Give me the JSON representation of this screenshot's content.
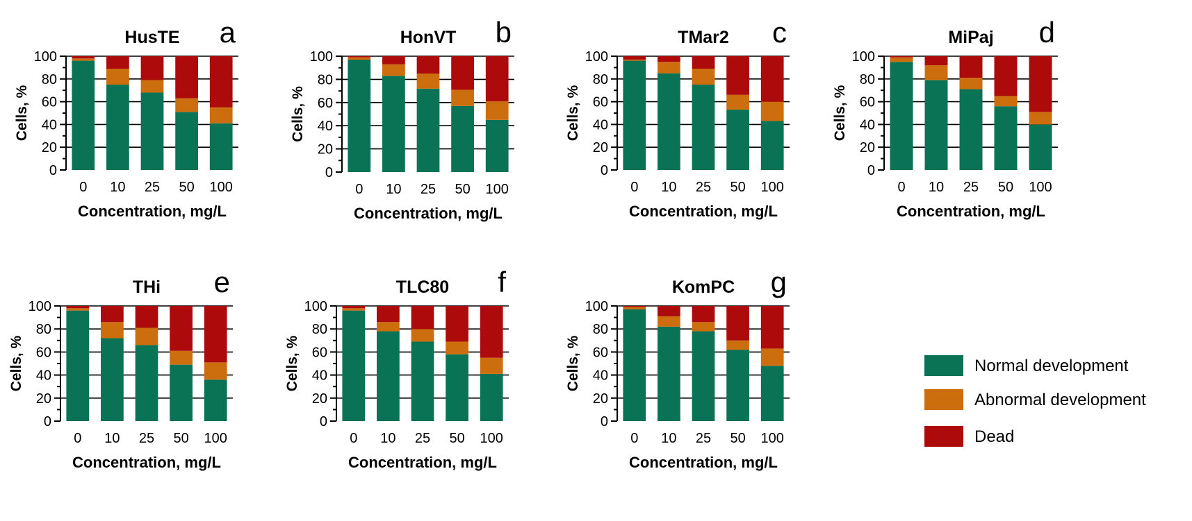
{
  "figure_label": "Multi-panel stacked bar chart",
  "legend": {
    "normal": "Normal development",
    "abnormal": "Abnormal development",
    "dead": "Dead"
  },
  "colors": {
    "normal": "#0b7355",
    "abnormal": "#cc6d0e",
    "dead": "#ad0b0b",
    "axis": "#000000",
    "grid": "#000000"
  },
  "chart_data": [
    {
      "type": "bar",
      "stacked": true,
      "panel": "a",
      "title": "HusTE",
      "xlabel": "Concentration, mg/L",
      "ylabel": "Cells, %",
      "ylim": [
        0,
        100
      ],
      "yticks": [
        "0",
        "20",
        "40",
        "60",
        "80",
        "100"
      ],
      "grid": true,
      "categories": [
        "0",
        "10",
        "25",
        "50",
        "100"
      ],
      "series": [
        {
          "name": "Normal development",
          "values": [
            96,
            75,
            68,
            51,
            41
          ]
        },
        {
          "name": "Abnormal development",
          "values": [
            2,
            14,
            11,
            12,
            14
          ]
        },
        {
          "name": "Dead",
          "values": [
            2,
            11,
            21,
            37,
            45
          ]
        }
      ]
    },
    {
      "type": "bar",
      "stacked": true,
      "panel": "b",
      "title": "HonVT",
      "xlabel": "Concentration, mg/L",
      "ylabel": "Cells, %",
      "ylim": [
        0,
        100
      ],
      "yticks": [
        "0",
        "20",
        "40",
        "60",
        "80",
        "100"
      ],
      "grid": true,
      "categories": [
        "0",
        "10",
        "25",
        "50",
        "100"
      ],
      "series": [
        {
          "name": "Normal development",
          "values": [
            97,
            83,
            72,
            57,
            45
          ]
        },
        {
          "name": "Abnormal development",
          "values": [
            2,
            10,
            13,
            14,
            16
          ]
        },
        {
          "name": "Dead",
          "values": [
            1,
            7,
            15,
            29,
            39
          ]
        }
      ]
    },
    {
      "type": "bar",
      "stacked": true,
      "panel": "c",
      "title": "TMar2",
      "xlabel": "Concentration, mg/L",
      "ylabel": "Cells, %",
      "ylim": [
        0,
        100
      ],
      "yticks": [
        "0",
        "20",
        "40",
        "60",
        "80",
        "100"
      ],
      "grid": true,
      "categories": [
        "0",
        "10",
        "25",
        "50",
        "100"
      ],
      "series": [
        {
          "name": "Normal development",
          "values": [
            96,
            85,
            75,
            53,
            43
          ]
        },
        {
          "name": "Abnormal development",
          "values": [
            1,
            10,
            14,
            13,
            17
          ]
        },
        {
          "name": "Dead",
          "values": [
            3,
            5,
            11,
            34,
            40
          ]
        }
      ]
    },
    {
      "type": "bar",
      "stacked": true,
      "panel": "d",
      "title": "MiPaj",
      "xlabel": "Concentration, mg/L",
      "ylabel": "Cells, %",
      "ylim": [
        0,
        100
      ],
      "yticks": [
        "0",
        "20",
        "40",
        "60",
        "80",
        "100"
      ],
      "grid": true,
      "categories": [
        "0",
        "10",
        "25",
        "50",
        "100"
      ],
      "series": [
        {
          "name": "Normal development",
          "values": [
            95,
            79,
            71,
            56,
            40
          ]
        },
        {
          "name": "Abnormal development",
          "values": [
            4,
            13,
            10,
            9,
            11
          ]
        },
        {
          "name": "Dead",
          "values": [
            1,
            8,
            19,
            35,
            49
          ]
        }
      ]
    },
    {
      "type": "bar",
      "stacked": true,
      "panel": "e",
      "title": "THi",
      "xlabel": "Concentration, mg/L",
      "ylabel": "Cells, %",
      "ylim": [
        0,
        100
      ],
      "yticks": [
        "0",
        "20",
        "40",
        "60",
        "80",
        "100"
      ],
      "grid": true,
      "categories": [
        "0",
        "10",
        "25",
        "50",
        "100"
      ],
      "series": [
        {
          "name": "Normal development",
          "values": [
            96,
            72,
            66,
            49,
            36
          ]
        },
        {
          "name": "Abnormal development",
          "values": [
            2,
            14,
            15,
            12,
            15
          ]
        },
        {
          "name": "Dead",
          "values": [
            2,
            14,
            19,
            39,
            49
          ]
        }
      ]
    },
    {
      "type": "bar",
      "stacked": true,
      "panel": "f",
      "title": "TLC80",
      "xlabel": "Concentration, mg/L",
      "ylabel": "Cells, %",
      "ylim": [
        0,
        100
      ],
      "yticks": [
        "0",
        "20",
        "40",
        "60",
        "80",
        "100"
      ],
      "grid": true,
      "categories": [
        "0",
        "10",
        "25",
        "50",
        "100"
      ],
      "series": [
        {
          "name": "Normal development",
          "values": [
            96,
            78,
            69,
            58,
            41
          ]
        },
        {
          "name": "Abnormal development",
          "values": [
            2,
            8,
            11,
            11,
            14
          ]
        },
        {
          "name": "Dead",
          "values": [
            2,
            14,
            20,
            31,
            45
          ]
        }
      ]
    },
    {
      "type": "bar",
      "stacked": true,
      "panel": "g",
      "title": "KomPC",
      "xlabel": "Concentration, mg/L",
      "ylabel": "Cells, %",
      "ylim": [
        0,
        100
      ],
      "yticks": [
        "0",
        "20",
        "40",
        "60",
        "80",
        "100"
      ],
      "grid": true,
      "categories": [
        "0",
        "10",
        "25",
        "50",
        "100"
      ],
      "series": [
        {
          "name": "Normal development",
          "values": [
            97,
            82,
            78,
            62,
            48
          ]
        },
        {
          "name": "Abnormal development",
          "values": [
            2,
            9,
            8,
            8,
            15
          ]
        },
        {
          "name": "Dead",
          "values": [
            1,
            9,
            14,
            30,
            37
          ]
        }
      ]
    }
  ]
}
